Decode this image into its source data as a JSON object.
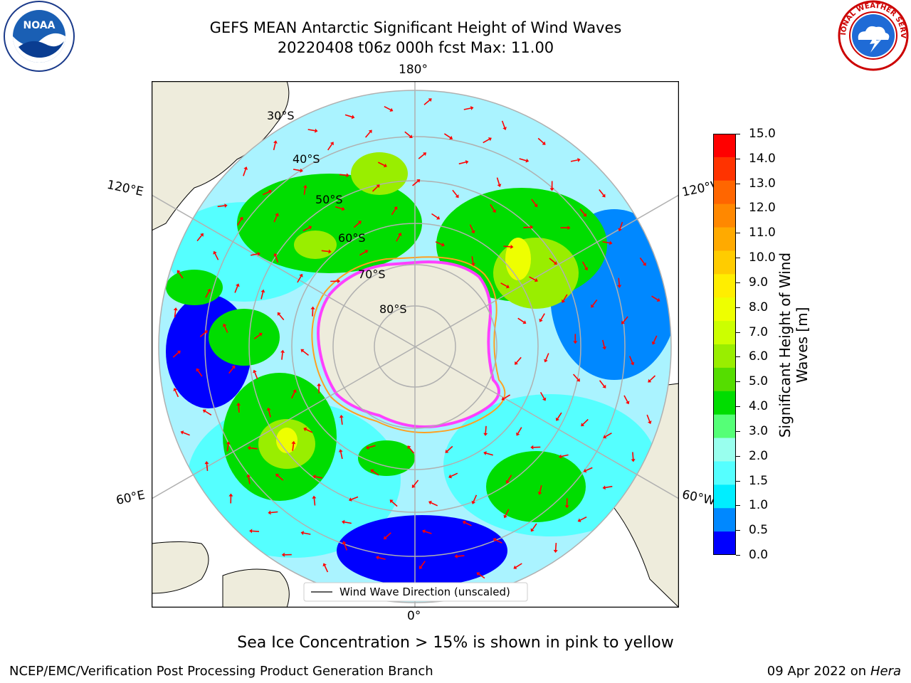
{
  "header": {
    "title_line1": "GEFS MEAN Antarctic Significant Height of Wind Waves",
    "title_line2": "20220408 t06z 000h fcst   Max: 11.00"
  },
  "logos": {
    "left": "noaa-logo",
    "left_text": "NOAA",
    "right": "nws-logo",
    "right_text": "NATIONAL WEATHER SERVICE"
  },
  "map": {
    "projection": "south-polar-stereographic",
    "longitude_labels": {
      "top": "180°",
      "bottom": "0°",
      "upper_left": "120°E",
      "upper_right": "120°W",
      "lower_left": "60°E",
      "lower_right": "60°W"
    },
    "latitude_labels": [
      "30°S",
      "40°S",
      "50°S",
      "60°S",
      "70°S",
      "80°S"
    ],
    "legend_label": "Wind Wave Direction (unscaled)",
    "land_color": "#eeecdc",
    "ice_colors": [
      "#ff40ff",
      "#ffa020",
      "#ffff40"
    ],
    "arrow_color": "#ff0000"
  },
  "colorbar": {
    "label": "Significant Height of Wind Waves [m]",
    "label_line1": "Significant Height of Wind",
    "label_line2": "Waves [m]",
    "ticks": [
      "15.0",
      "14.0",
      "13.0",
      "12.0",
      "11.0",
      "10.0",
      "9.0",
      "8.0",
      "7.0",
      "6.0",
      "5.0",
      "4.0",
      "3.0",
      "2.0",
      "1.5",
      "1.0",
      "0.5",
      "0.0"
    ],
    "colors": [
      "#ff0000",
      "#ff3300",
      "#ff6600",
      "#ff8800",
      "#ffaa00",
      "#ffcc00",
      "#ffee00",
      "#eeff00",
      "#ccff00",
      "#99ee00",
      "#55dd00",
      "#00dd00",
      "#55ff77",
      "#99ffee",
      "#55ffff",
      "#00eeff",
      "#0088ff",
      "#0000ff"
    ]
  },
  "note": "Sea Ice Concentration > 15% is shown in pink to yellow",
  "footer": {
    "left": "NCEP/EMC/Verification Post Processing Product Generation Branch",
    "right_date": "09 Apr 2022 on",
    "right_host": "Hera"
  }
}
